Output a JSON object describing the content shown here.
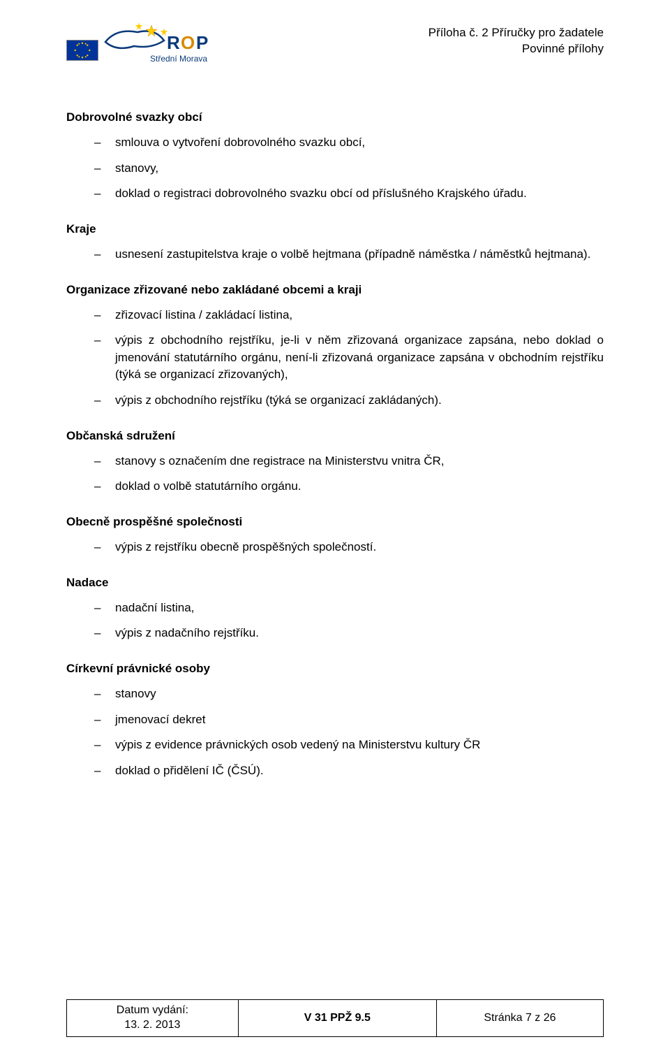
{
  "header": {
    "line1": "Příloha č. 2 Příručky pro žadatele",
    "line2": "Povinné přílohy",
    "rop_subtitle": "Střední Morava"
  },
  "sections": [
    {
      "title": "Dobrovolné svazky obcí",
      "items": [
        "smlouva o vytvoření dobrovolného svazku obcí,",
        "stanovy,",
        "doklad o registraci dobrovolného svazku obcí od příslušného Krajského úřadu."
      ]
    },
    {
      "title": "Kraje",
      "items": [
        "usnesení zastupitelstva kraje o volbě hejtmana (případně náměstka / náměstků hejtmana)."
      ]
    },
    {
      "title": "Organizace zřizované nebo zakládané obcemi a kraji",
      "items": [
        "zřizovací listina / zakládací listina,",
        "výpis z obchodního rejstříku, je-li v něm zřizovaná organizace zapsána, nebo doklad o jmenování statutárního orgánu, není-li zřizovaná organizace zapsána v obchodním rejstříku (týká se organizací zřizovaných),",
        "výpis z obchodního rejstříku (týká se organizací zakládaných)."
      ]
    },
    {
      "title": "Občanská sdružení",
      "items": [
        "stanovy s označením dne registrace na Ministerstvu vnitra ČR,",
        "doklad o volbě statutárního orgánu."
      ]
    },
    {
      "title": "Obecně prospěšné společnosti",
      "items": [
        "výpis z rejstříku obecně prospěšných společností."
      ]
    },
    {
      "title": "Nadace",
      "items": [
        "nadační listina,",
        "výpis z nadačního rejstříku."
      ]
    },
    {
      "title": "Církevní právnické osoby",
      "items": [
        "stanovy",
        "jmenovací dekret",
        "výpis z evidence právnických osob vedený na Ministerstvu kultury ČR",
        "doklad o přidělení IČ (ČSÚ)."
      ]
    }
  ],
  "footer": {
    "issue_label": "Datum vydání:",
    "issue_date": "13. 2. 2013",
    "version": "V 31 PPŽ 9.5",
    "page": "Stránka 7 z 26"
  },
  "colors": {
    "text": "#000000",
    "eu_blue": "#003399",
    "eu_gold": "#ffcc00",
    "rop_blue": "#0a3a7a",
    "rop_orange": "#d98b00"
  }
}
